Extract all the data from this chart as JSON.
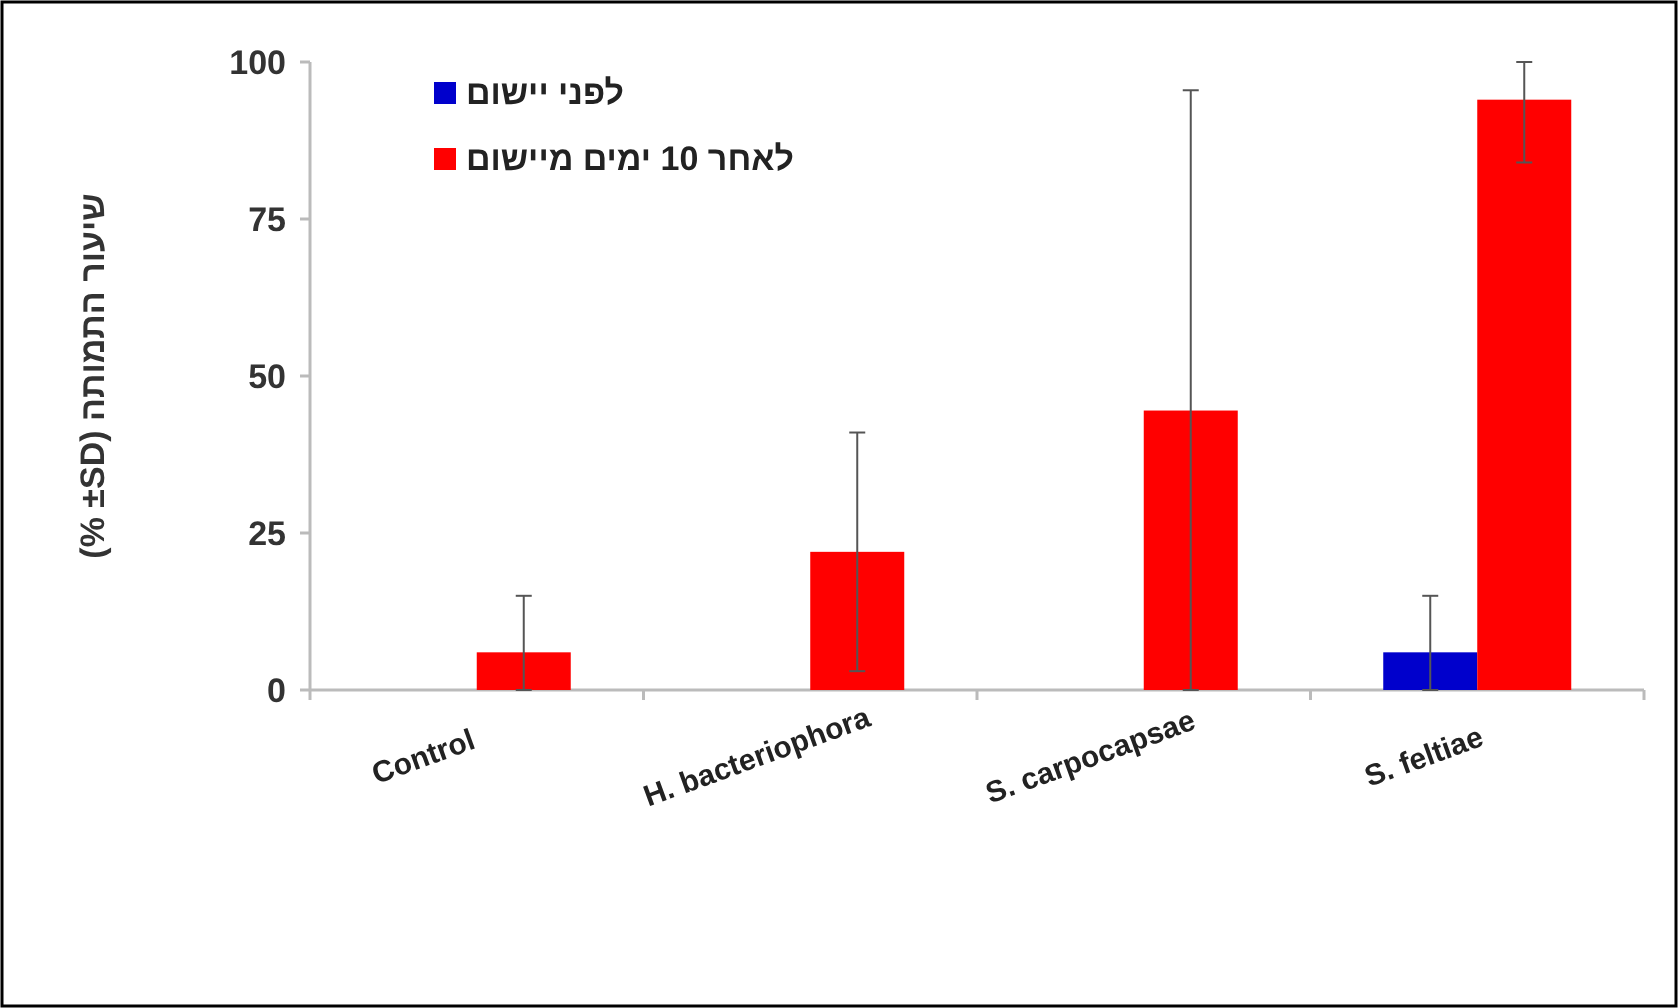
{
  "chart_data": {
    "type": "bar",
    "ylabel": "(% ±SD) שיעור התמותה",
    "categories": [
      "Control",
      "H. bacteriophora",
      "S. carpocapsae",
      "S. feltiae"
    ],
    "series": [
      {
        "name": "לפני יישום",
        "color": "#0000cc",
        "values": [
          null,
          null,
          null,
          6
        ],
        "errors": [
          null,
          null,
          null,
          [
            0,
            15
          ]
        ]
      },
      {
        "name": "לאחר 10 ימים מיישום",
        "color": "#ff0000",
        "values": [
          6,
          22,
          44.5,
          94
        ],
        "errors": [
          [
            0,
            15
          ],
          19,
          [
            0,
            95.5
          ],
          [
            84,
            100
          ]
        ]
      }
    ],
    "ylim": [
      0,
      100
    ],
    "yticks": [
      0,
      25,
      50,
      75,
      100
    ],
    "legend": "top left"
  }
}
